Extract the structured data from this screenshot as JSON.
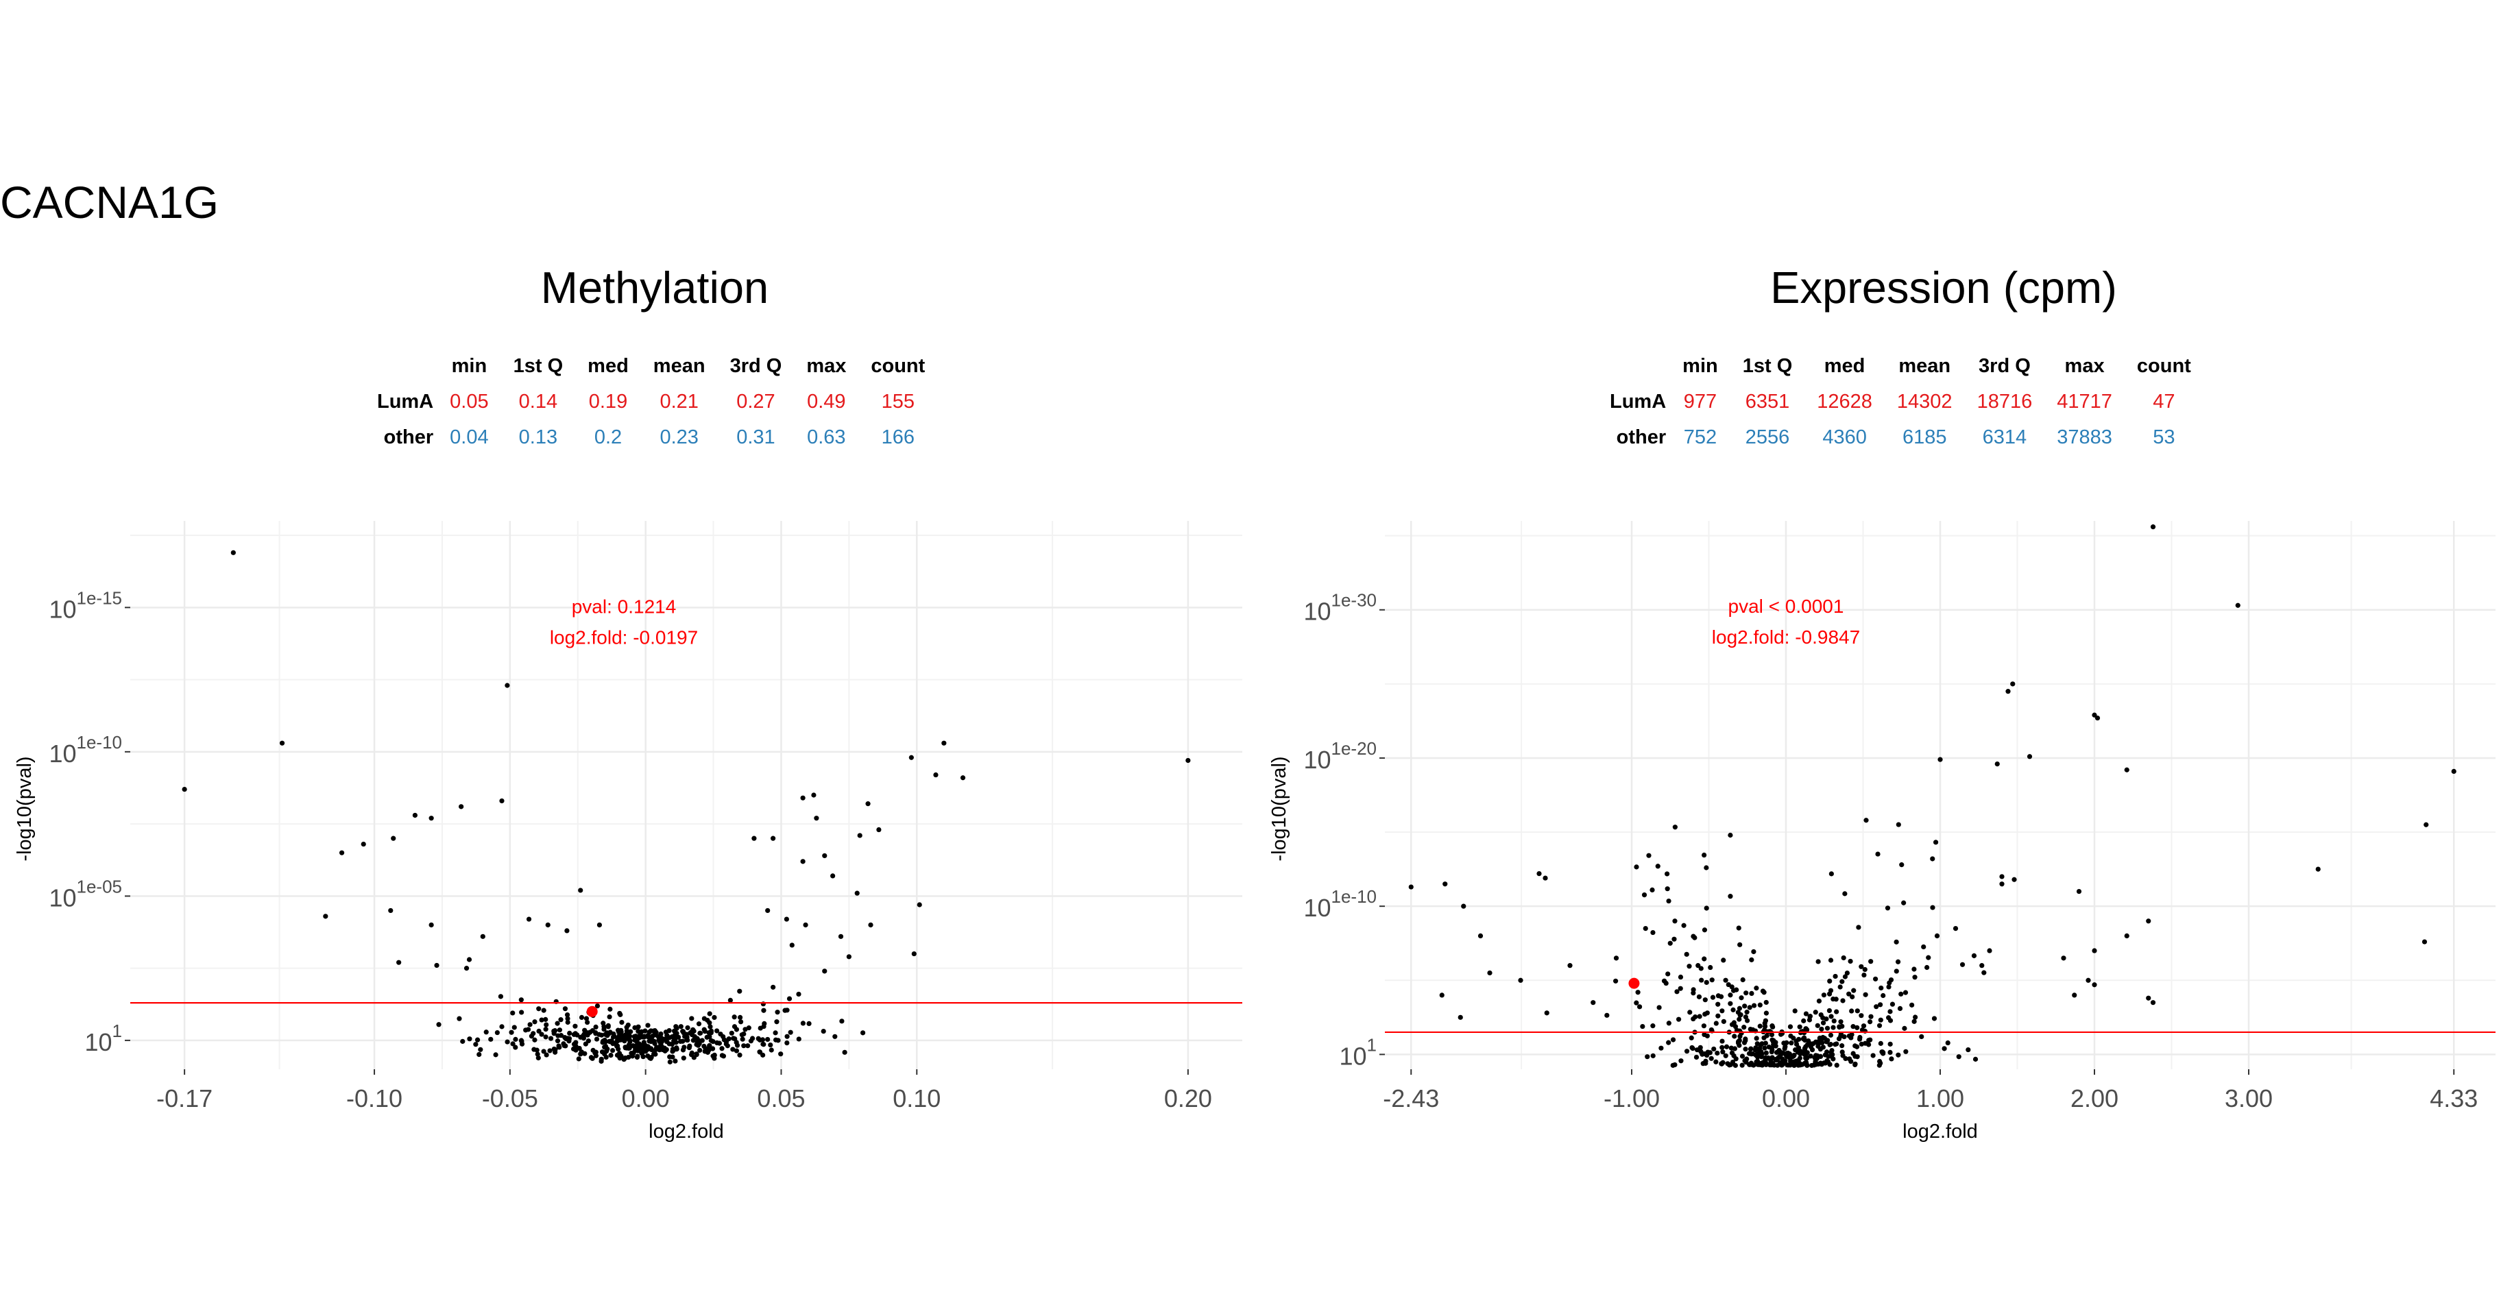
{
  "gene": "CACNA1G",
  "chart_data": [
    {
      "type": "scatter",
      "title": "Methylation",
      "xlabel": "log2.fold",
      "ylabel": "-log10(pval)",
      "xlim": [
        -0.19,
        0.22
      ],
      "ylim": [
        0,
        19
      ],
      "x_ticks": [
        -0.17,
        -0.1,
        -0.05,
        0.0,
        0.05,
        0.1,
        0.2
      ],
      "x_tick_labels": [
        "-0.17",
        "-0.10",
        "-0.05",
        "0.00",
        "0.05",
        "0.10",
        "0.20"
      ],
      "y_ticks": [
        {
          "base": "10",
          "exp": "1",
          "value": 1
        },
        {
          "base": "10",
          "exp": "1e-05",
          "value": 6
        },
        {
          "base": "10",
          "exp": "1e-10",
          "value": 11
        },
        {
          "base": "10",
          "exp": "1e-15",
          "value": 16
        }
      ],
      "threshold": 2.3,
      "highlight": {
        "x": -0.0197,
        "y": 2.0
      },
      "annotation": [
        "pval: 0.1214",
        "log2.fold: -0.0197"
      ],
      "annotation_pos": {
        "x": -0.008,
        "y": 15.8
      },
      "stats": {
        "headers": [
          "min",
          "1st Q",
          "med",
          "mean",
          "3rd Q",
          "max",
          "count"
        ],
        "rows": [
          {
            "label": "LumA",
            "values": [
              "0.05",
              "0.14",
              "0.19",
              "0.21",
              "0.27",
              "0.49",
              "155"
            ]
          },
          {
            "label": "other",
            "values": [
              "0.04",
              "0.13",
              "0.2",
              "0.23",
              "0.31",
              "0.63",
              "166"
            ]
          }
        ]
      },
      "seed": 7,
      "cloud": {
        "count": 480,
        "x_sd": 0.026,
        "y_scale": 0.65,
        "y_spread": 52
      },
      "points": [
        {
          "x": -0.152,
          "y": 17.9
        },
        {
          "x": -0.17,
          "y": 9.7
        },
        {
          "x": -0.134,
          "y": 11.3
        },
        {
          "x": -0.051,
          "y": 13.3
        },
        {
          "x": 0.098,
          "y": 10.8
        },
        {
          "x": 0.107,
          "y": 10.2
        },
        {
          "x": 0.11,
          "y": 11.3
        },
        {
          "x": 0.117,
          "y": 10.1
        },
        {
          "x": 0.2,
          "y": 10.7
        },
        {
          "x": -0.112,
          "y": 7.5
        },
        {
          "x": -0.104,
          "y": 7.8
        },
        {
          "x": -0.093,
          "y": 8.0
        },
        {
          "x": -0.085,
          "y": 8.8
        },
        {
          "x": -0.079,
          "y": 8.7
        },
        {
          "x": -0.068,
          "y": 9.1
        },
        {
          "x": -0.053,
          "y": 9.3
        },
        {
          "x": -0.118,
          "y": 5.3
        },
        {
          "x": -0.094,
          "y": 5.5
        },
        {
          "x": -0.091,
          "y": 3.7
        },
        {
          "x": -0.079,
          "y": 5.0
        },
        {
          "x": -0.077,
          "y": 3.6
        },
        {
          "x": 0.058,
          "y": 9.4
        },
        {
          "x": 0.062,
          "y": 9.5
        },
        {
          "x": 0.082,
          "y": 9.2
        },
        {
          "x": 0.086,
          "y": 8.3
        },
        {
          "x": 0.101,
          "y": 5.7
        },
        {
          "x": 0.099,
          "y": 4.0
        },
        {
          "x": 0.04,
          "y": 8.0
        },
        {
          "x": 0.047,
          "y": 8.0
        },
        {
          "x": 0.063,
          "y": 8.7
        },
        {
          "x": 0.079,
          "y": 8.1
        },
        {
          "x": 0.066,
          "y": 7.4
        },
        {
          "x": 0.058,
          "y": 7.2
        },
        {
          "x": 0.069,
          "y": 6.7
        },
        {
          "x": 0.078,
          "y": 6.1
        },
        {
          "x": 0.083,
          "y": 5.0
        },
        {
          "x": -0.024,
          "y": 6.2
        },
        {
          "x": -0.043,
          "y": 5.2
        },
        {
          "x": -0.036,
          "y": 5.0
        },
        {
          "x": -0.017,
          "y": 5.0
        },
        {
          "x": 0.045,
          "y": 5.5
        },
        {
          "x": 0.052,
          "y": 5.2
        },
        {
          "x": -0.06,
          "y": 4.6
        },
        {
          "x": -0.065,
          "y": 3.8
        },
        {
          "x": -0.066,
          "y": 3.5
        },
        {
          "x": -0.029,
          "y": 4.8
        },
        {
          "x": 0.072,
          "y": 4.6
        },
        {
          "x": 0.075,
          "y": 3.9
        },
        {
          "x": 0.066,
          "y": 3.4
        },
        {
          "x": 0.059,
          "y": 5.0
        },
        {
          "x": 0.054,
          "y": 4.3
        }
      ]
    },
    {
      "type": "scatter",
      "title": "Expression (cpm)",
      "xlabel": "log2.fold",
      "ylabel": "-log10(pval)",
      "xlim": [
        -2.6,
        4.6
      ],
      "ylim": [
        0,
        37
      ],
      "x_ticks": [
        -2.43,
        -1.0,
        0.0,
        1.0,
        2.0,
        3.0,
        4.33
      ],
      "x_tick_labels": [
        "-2.43",
        "-1.00",
        "0.00",
        "1.00",
        "2.00",
        "3.00",
        "4.33"
      ],
      "y_ticks": [
        {
          "base": "10",
          "exp": "1",
          "value": 1
        },
        {
          "base": "10",
          "exp": "1e-10",
          "value": 11
        },
        {
          "base": "10",
          "exp": "1e-20",
          "value": 21
        },
        {
          "base": "10",
          "exp": "1e-30",
          "value": 31
        }
      ],
      "threshold": 2.5,
      "highlight": {
        "x": -0.9847,
        "y": 5.8
      },
      "annotation": [
        "pval < 0.0001",
        "log2.fold: -0.9847"
      ],
      "annotation_pos": {
        "x": 0.0,
        "y": 30.8
      },
      "stats": {
        "headers": [
          "min",
          "1st Q",
          "med",
          "mean",
          "3rd Q",
          "max",
          "count"
        ],
        "rows": [
          {
            "label": "LumA",
            "values": [
              "977",
              "6351",
              "12628",
              "14302",
              "18716",
              "41717",
              "47"
            ]
          },
          {
            "label": "other",
            "values": [
              "752",
              "2556",
              "4360",
              "6185",
              "6314",
              "37883",
              "53"
            ]
          }
        ]
      },
      "seed": 11,
      "cloud": {
        "count": 560,
        "x_sd": 0.42,
        "y_scale": 5.5,
        "y_spread": 0.7
      },
      "points": [
        {
          "x": 2.38,
          "y": 36.6
        },
        {
          "x": 2.93,
          "y": 31.3
        },
        {
          "x": 1.47,
          "y": 26.0
        },
        {
          "x": 1.44,
          "y": 25.5
        },
        {
          "x": 2.0,
          "y": 23.9
        },
        {
          "x": 2.02,
          "y": 23.7
        },
        {
          "x": 1.58,
          "y": 21.1
        },
        {
          "x": 1.0,
          "y": 20.9
        },
        {
          "x": 1.37,
          "y": 20.6
        },
        {
          "x": 2.21,
          "y": 20.2
        },
        {
          "x": 4.33,
          "y": 20.1
        },
        {
          "x": 4.15,
          "y": 16.5
        },
        {
          "x": 3.45,
          "y": 13.5
        },
        {
          "x": 4.14,
          "y": 8.6
        },
        {
          "x": 0.52,
          "y": 16.8
        },
        {
          "x": 0.95,
          "y": 14.2
        },
        {
          "x": 0.75,
          "y": 13.8
        },
        {
          "x": 1.4,
          "y": 12.5
        },
        {
          "x": 1.4,
          "y": 13.0
        },
        {
          "x": 1.9,
          "y": 12.0
        },
        {
          "x": 2.35,
          "y": 10.0
        },
        {
          "x": 1.48,
          "y": 12.8
        },
        {
          "x": -2.43,
          "y": 12.3
        },
        {
          "x": -2.21,
          "y": 12.5
        },
        {
          "x": -2.09,
          "y": 11.0
        },
        {
          "x": -1.98,
          "y": 9.0
        },
        {
          "x": -1.92,
          "y": 6.5
        },
        {
          "x": -1.72,
          "y": 6.0
        },
        {
          "x": -1.6,
          "y": 13.2
        },
        {
          "x": -1.56,
          "y": 12.9
        },
        {
          "x": -1.4,
          "y": 7.0
        },
        {
          "x": -2.23,
          "y": 5.0
        },
        {
          "x": -2.11,
          "y": 3.5
        },
        {
          "x": -1.55,
          "y": 3.8
        },
        {
          "x": -0.83,
          "y": 13.7
        },
        {
          "x": -1.1,
          "y": 7.5
        },
        {
          "x": -0.91,
          "y": 9.5
        },
        {
          "x": -1.25,
          "y": 4.5
        },
        {
          "x": -0.57,
          "y": 7.0
        },
        {
          "x": -0.55,
          "y": 6.8
        },
        {
          "x": -0.75,
          "y": 8.5
        },
        {
          "x": -0.72,
          "y": 10.0
        },
        {
          "x": 2.21,
          "y": 9.0
        },
        {
          "x": 2.35,
          "y": 4.8
        },
        {
          "x": 2.38,
          "y": 4.5
        },
        {
          "x": 2.0,
          "y": 5.7
        },
        {
          "x": 1.96,
          "y": 6.0
        },
        {
          "x": 1.87,
          "y": 5.0
        },
        {
          "x": 1.8,
          "y": 7.5
        },
        {
          "x": 2.0,
          "y": 8.0
        },
        {
          "x": 1.27,
          "y": 7.0
        },
        {
          "x": 1.32,
          "y": 8.0
        },
        {
          "x": 1.1,
          "y": 9.5
        },
        {
          "x": 0.98,
          "y": 9.0
        }
      ]
    }
  ]
}
